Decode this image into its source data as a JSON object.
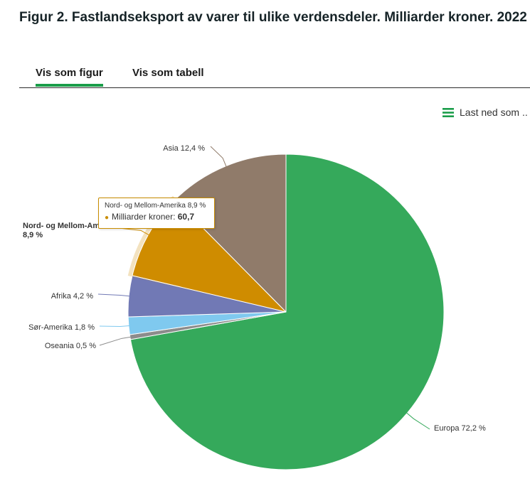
{
  "page": {
    "title": "Figur 2. Fastlandseksport av varer til ulike verdensdeler. Milliarder kroner. 2022"
  },
  "tabs": [
    {
      "label": "Vis som figur",
      "active": true
    },
    {
      "label": "Vis som tabell",
      "active": false
    }
  ],
  "download": {
    "label": "Last ned som ..",
    "icon": "menu-icon"
  },
  "tooltip": {
    "header": "Nord- og Mellom-Amerika 8,9 %",
    "series_label": "Milliarder kroner",
    "value": "60,7"
  },
  "chart_data": {
    "type": "pie",
    "series_name": "Milliarder kroner",
    "slices": [
      {
        "name": "Europa",
        "percent": 72.2,
        "label": "Europa 72,2 %",
        "color": "#35a95b"
      },
      {
        "name": "Oseania",
        "percent": 0.5,
        "label": "Oseania 0,5 %",
        "color": "#8c8c8c"
      },
      {
        "name": "Sør-Amerika",
        "percent": 1.8,
        "label": "Sør-Amerika 1,8 %",
        "color": "#7fc9ef"
      },
      {
        "name": "Afrika",
        "percent": 4.2,
        "label": "Afrika 4,2 %",
        "color": "#7179b5"
      },
      {
        "name": "Nord- og Mellom-Amerika",
        "percent": 8.9,
        "label": "Nord- og Mellom-Amerika",
        "label_line2": "8,9 %",
        "color": "#cf8c00",
        "highlighted": true,
        "value": 60.7
      },
      {
        "name": "Asia",
        "percent": 12.4,
        "label": "Asia 12,4 %",
        "color": "#907b6a"
      }
    ]
  }
}
